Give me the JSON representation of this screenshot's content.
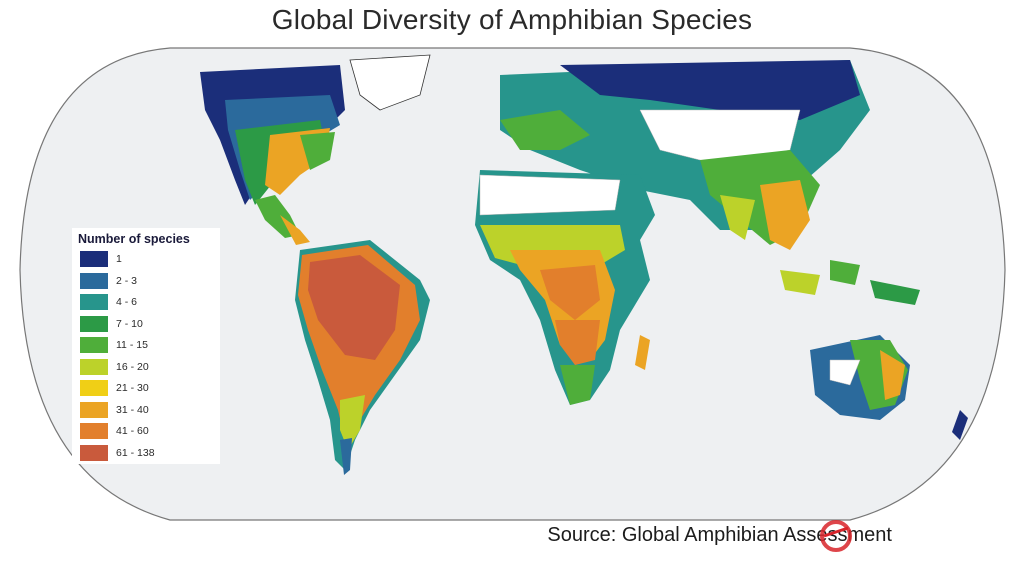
{
  "title": "Global Diversity of Amphibian Species",
  "legend": {
    "title": "Number of species",
    "classes": [
      {
        "label": "1",
        "color": "#1b2e7a"
      },
      {
        "label": "2 - 3",
        "color": "#2b6a9c"
      },
      {
        "label": "4 - 6",
        "color": "#27958c"
      },
      {
        "label": "7 - 10",
        "color": "#2c9a46"
      },
      {
        "label": "11 - 15",
        "color": "#4fae3a"
      },
      {
        "label": "16 - 20",
        "color": "#bcd22a"
      },
      {
        "label": "21 - 30",
        "color": "#f0cf16"
      },
      {
        "label": "31 - 40",
        "color": "#eba424"
      },
      {
        "label": "41 - 60",
        "color": "#e27f2c"
      },
      {
        "label": "61 - 138",
        "color": "#c95a3c"
      }
    ]
  },
  "source": "Source: Global Amphibian Assessment",
  "colors": {
    "ocean": "#eef0f2",
    "no_data": "#ffffff",
    "outline": "#333333"
  }
}
